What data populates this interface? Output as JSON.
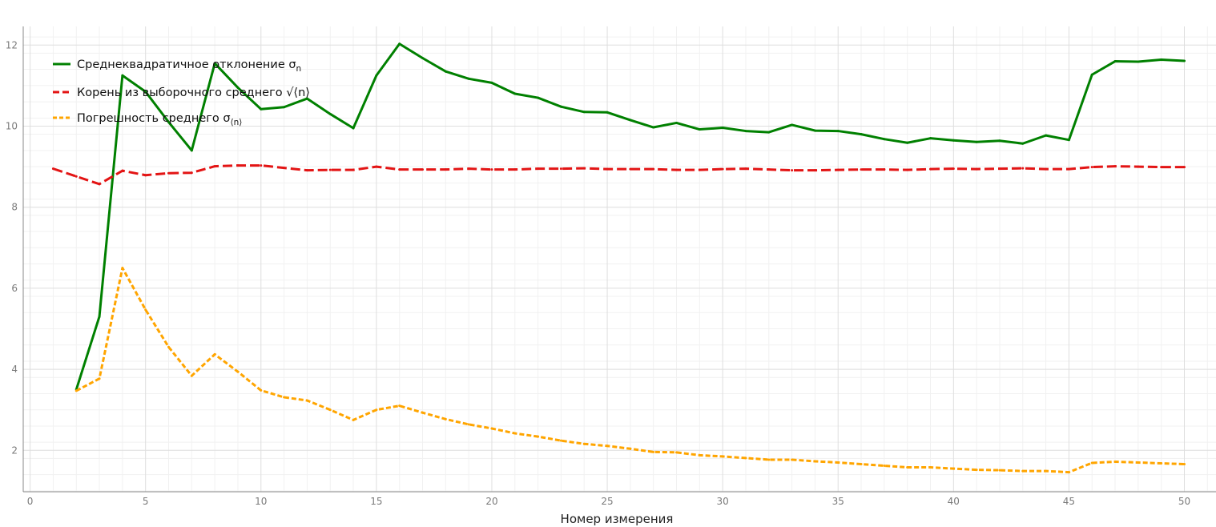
{
  "chart_data": {
    "type": "line",
    "xlabel": "Номер измерения",
    "ylabel": "",
    "xlim": [
      0,
      51
    ],
    "ylim": [
      1,
      12.5
    ],
    "xticks": [
      0,
      5,
      10,
      15,
      20,
      25,
      30,
      35,
      40,
      45,
      50
    ],
    "yticks": [
      2,
      4,
      6,
      8,
      10,
      12
    ],
    "grid": true,
    "legend_position": "top-left",
    "series": [
      {
        "name": "Среднеквадратичное отклонение σ",
        "name_subscript": "n",
        "color": "#008000",
        "dash": "solid",
        "x": [
          2,
          3,
          4,
          5,
          6,
          7,
          8,
          9,
          10,
          11,
          12,
          13,
          14,
          15,
          16,
          17,
          18,
          19,
          20,
          21,
          22,
          23,
          24,
          25,
          26,
          27,
          28,
          29,
          30,
          31,
          32,
          33,
          34,
          35,
          36,
          37,
          38,
          39,
          40,
          41,
          42,
          43,
          44,
          45,
          46,
          47,
          48,
          49,
          50
        ],
        "y": [
          3.5,
          5.3,
          11.25,
          10.85,
          10.1,
          9.4,
          11.55,
          10.95,
          10.42,
          10.47,
          10.68,
          10.3,
          9.95,
          11.25,
          12.03,
          11.68,
          11.35,
          11.17,
          11.07,
          10.8,
          10.7,
          10.48,
          10.35,
          10.34,
          10.15,
          9.97,
          10.08,
          9.92,
          9.96,
          9.88,
          9.85,
          10.03,
          9.89,
          9.88,
          9.8,
          9.68,
          9.59,
          9.7,
          9.65,
          9.61,
          9.64,
          9.57,
          9.77,
          9.66,
          11.27,
          11.6,
          11.59,
          11.64,
          11.61
        ]
      },
      {
        "name": "Корень из выборочного среднего √⟨n⟩",
        "name_subscript": "",
        "color": "#e31414",
        "dash": "dashed",
        "x": [
          1,
          2,
          3,
          4,
          5,
          6,
          7,
          8,
          9,
          10,
          11,
          12,
          13,
          14,
          15,
          16,
          17,
          18,
          19,
          20,
          21,
          22,
          23,
          24,
          25,
          26,
          27,
          28,
          29,
          30,
          31,
          32,
          33,
          34,
          35,
          36,
          37,
          38,
          39,
          40,
          41,
          42,
          43,
          44,
          45,
          46,
          47,
          48,
          49,
          50
        ],
        "y": [
          8.95,
          8.76,
          8.57,
          8.9,
          8.79,
          8.84,
          8.85,
          9.01,
          9.03,
          9.03,
          8.97,
          8.91,
          8.92,
          8.92,
          9.0,
          8.93,
          8.93,
          8.93,
          8.95,
          8.93,
          8.93,
          8.95,
          8.95,
          8.96,
          8.94,
          8.94,
          8.94,
          8.92,
          8.92,
          8.94,
          8.95,
          8.93,
          8.91,
          8.91,
          8.92,
          8.93,
          8.93,
          8.92,
          8.94,
          8.95,
          8.94,
          8.95,
          8.96,
          8.94,
          8.94,
          8.99,
          9.01,
          9.0,
          8.99,
          8.99
        ]
      },
      {
        "name": "Погрешность среднего σ",
        "name_subscript": "⟨n⟩",
        "color": "#ffa500",
        "dash": "dotted",
        "x": [
          2,
          3,
          4,
          5,
          6,
          7,
          8,
          9,
          10,
          11,
          12,
          13,
          14,
          15,
          16,
          17,
          18,
          19,
          20,
          21,
          22,
          23,
          24,
          25,
          26,
          27,
          28,
          29,
          30,
          31,
          32,
          33,
          34,
          35,
          36,
          37,
          38,
          39,
          40,
          41,
          42,
          43,
          44,
          45,
          46,
          47,
          48,
          49,
          50
        ],
        "y": [
          3.47,
          3.77,
          6.5,
          5.47,
          4.55,
          3.84,
          4.37,
          3.94,
          3.48,
          3.31,
          3.23,
          3.0,
          2.75,
          3.0,
          3.1,
          2.93,
          2.77,
          2.64,
          2.54,
          2.42,
          2.34,
          2.24,
          2.16,
          2.11,
          2.04,
          1.96,
          1.95,
          1.88,
          1.85,
          1.81,
          1.77,
          1.77,
          1.73,
          1.7,
          1.66,
          1.62,
          1.58,
          1.58,
          1.55,
          1.52,
          1.51,
          1.49,
          1.49,
          1.46,
          1.69,
          1.72,
          1.7,
          1.68,
          1.66
        ]
      }
    ]
  }
}
